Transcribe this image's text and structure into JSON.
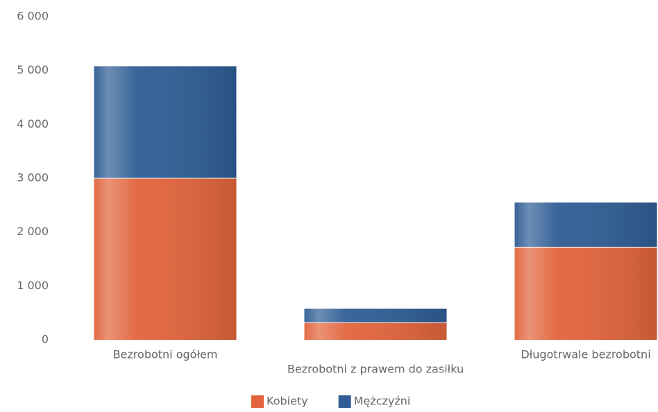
{
  "chart_data": {
    "type": "stacked_bar",
    "categories": [
      "Bezrobotni ogółem",
      "Bezrobotni z prawem do zasiłku",
      "Długotrwale bezrobotni"
    ],
    "series": [
      {
        "name": "Kobiety",
        "color": "#e2643c",
        "values": [
          3000,
          320,
          1720
        ]
      },
      {
        "name": "Mężczyźni",
        "color": "#2f5d94",
        "values": [
          2080,
          260,
          830
        ]
      }
    ],
    "ylim": [
      0,
      6000
    ],
    "yticks": [
      {
        "value": 0,
        "label": "0"
      },
      {
        "value": 1000,
        "label": "1 000"
      },
      {
        "value": 2000,
        "label": "2 000"
      },
      {
        "value": 3000,
        "label": "3 000"
      },
      {
        "value": 4000,
        "label": "4 000"
      },
      {
        "value": 5000,
        "label": "5 000"
      },
      {
        "value": 6000,
        "label": "6 000"
      }
    ],
    "grid": false,
    "legend": "bottom"
  }
}
